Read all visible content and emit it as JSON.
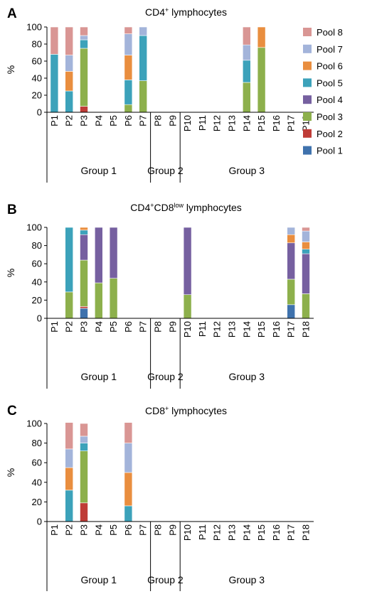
{
  "figure": {
    "legend": [
      {
        "label": "Pool 8",
        "color": "#d99694"
      },
      {
        "label": "Pool 7",
        "color": "#a3b4da"
      },
      {
        "label": "Pool 6",
        "color": "#e98e3f"
      },
      {
        "label": "Pool 5",
        "color": "#3ca2ba"
      },
      {
        "label": "Pool 4",
        "color": "#7660a0"
      },
      {
        "label": "Pool 3",
        "color": "#8db04c"
      },
      {
        "label": "Pool 2",
        "color": "#bf3c37"
      },
      {
        "label": "Pool 1",
        "color": "#3f72ad"
      }
    ]
  },
  "chart_data": [
    {
      "type": "bar",
      "stacked": true,
      "panel": "A",
      "title": {
        "parts": [
          {
            "text": "CD4",
            "sup": false
          },
          {
            "text": "+",
            "sup": true
          },
          {
            "text": " lymphocytes",
            "sup": false
          }
        ]
      },
      "ylabel": "%",
      "ylim": [
        0,
        100
      ],
      "yticks": [
        "0",
        "20",
        "40",
        "60",
        "80",
        "100"
      ],
      "categories": [
        "P1",
        "P2",
        "P3",
        "P4",
        "P5",
        "P6",
        "P7",
        "P8",
        "P9",
        "P10",
        "P11",
        "P12",
        "P13",
        "P14",
        "P15",
        "P16",
        "P17",
        "P18"
      ],
      "groups": [
        {
          "label": "Group 1",
          "span": [
            0,
            6
          ]
        },
        {
          "label": "Group 2",
          "span": [
            7,
            8
          ]
        },
        {
          "label": "Group 3",
          "span": [
            9,
            17
          ]
        }
      ],
      "series": [
        {
          "name": "Pool 1",
          "color": "#3f72ad",
          "values": [
            0,
            0,
            0,
            0,
            0,
            0,
            0,
            0,
            0,
            0,
            0,
            0,
            0,
            0,
            0,
            0,
            0,
            0
          ]
        },
        {
          "name": "Pool 2",
          "color": "#bf3c37",
          "values": [
            0,
            0,
            7,
            0,
            0,
            0,
            0,
            0,
            0,
            0,
            0,
            0,
            0,
            0,
            0,
            0,
            0,
            0
          ]
        },
        {
          "name": "Pool 3",
          "color": "#8db04c",
          "values": [
            0,
            0,
            68,
            0,
            0,
            9,
            37,
            0,
            0,
            0,
            0,
            0,
            0,
            35,
            76,
            0,
            0,
            0
          ]
        },
        {
          "name": "Pool 4",
          "color": "#7660a0",
          "values": [
            0,
            0,
            0,
            0,
            0,
            0,
            0,
            0,
            0,
            0,
            0,
            0,
            0,
            0,
            0,
            0,
            0,
            0
          ]
        },
        {
          "name": "Pool 5",
          "color": "#3ca2ba",
          "values": [
            68,
            25,
            10,
            0,
            0,
            29,
            53,
            0,
            0,
            0,
            0,
            0,
            0,
            26,
            0,
            0,
            0,
            0
          ]
        },
        {
          "name": "Pool 6",
          "color": "#e98e3f",
          "values": [
            0,
            23,
            0,
            0,
            0,
            29,
            0,
            0,
            0,
            0,
            0,
            0,
            0,
            0,
            24,
            0,
            0,
            0
          ]
        },
        {
          "name": "Pool 7",
          "color": "#a3b4da",
          "values": [
            0,
            19,
            5,
            0,
            0,
            25,
            10,
            0,
            0,
            0,
            0,
            0,
            0,
            18,
            0,
            0,
            0,
            0
          ]
        },
        {
          "name": "Pool 8",
          "color": "#d99694",
          "values": [
            32,
            33,
            10,
            0,
            0,
            8,
            0,
            0,
            0,
            0,
            0,
            0,
            0,
            21,
            0,
            0,
            0,
            0
          ]
        }
      ]
    },
    {
      "type": "bar",
      "stacked": true,
      "panel": "B",
      "title": {
        "parts": [
          {
            "text": "CD4",
            "sup": false
          },
          {
            "text": "+",
            "sup": true
          },
          {
            "text": "CD8",
            "sup": false
          },
          {
            "text": "low",
            "sup": true
          },
          {
            "text": " lymphocytes",
            "sup": false
          }
        ]
      },
      "ylabel": "%",
      "ylim": [
        0,
        100
      ],
      "yticks": [
        "0",
        "20",
        "40",
        "60",
        "80",
        "100"
      ],
      "categories": [
        "P1",
        "P2",
        "P3",
        "P4",
        "P5",
        "P6",
        "P7",
        "P8",
        "P9",
        "P10",
        "P11",
        "P12",
        "P13",
        "P14",
        "P15",
        "P16",
        "P17",
        "P18"
      ],
      "groups": [
        {
          "label": "Group 1",
          "span": [
            0,
            6
          ]
        },
        {
          "label": "Group 2",
          "span": [
            7,
            8
          ]
        },
        {
          "label": "Group 3",
          "span": [
            9,
            17
          ]
        }
      ],
      "series": [
        {
          "name": "Pool 1",
          "color": "#3f72ad",
          "values": [
            0,
            0,
            11,
            0,
            0,
            0,
            0,
            0,
            0,
            0,
            0,
            0,
            0,
            0,
            0,
            0,
            15,
            0
          ]
        },
        {
          "name": "Pool 2",
          "color": "#bf3c37",
          "values": [
            0,
            0,
            2,
            0,
            0,
            0,
            0,
            0,
            0,
            0,
            0,
            0,
            0,
            0,
            0,
            0,
            0,
            0
          ]
        },
        {
          "name": "Pool 3",
          "color": "#8db04c",
          "values": [
            0,
            29,
            51,
            39,
            44,
            0,
            0,
            0,
            0,
            26,
            0,
            0,
            0,
            0,
            0,
            0,
            28,
            27
          ]
        },
        {
          "name": "Pool 4",
          "color": "#7660a0",
          "values": [
            0,
            0,
            28,
            61,
            56,
            0,
            0,
            0,
            0,
            74,
            0,
            0,
            0,
            0,
            0,
            0,
            40,
            44
          ]
        },
        {
          "name": "Pool 5",
          "color": "#3ca2ba",
          "values": [
            0,
            71,
            5,
            0,
            0,
            0,
            0,
            0,
            0,
            0,
            0,
            0,
            0,
            0,
            0,
            0,
            0,
            5
          ]
        },
        {
          "name": "Pool 6",
          "color": "#e98e3f",
          "values": [
            0,
            0,
            3,
            0,
            0,
            0,
            0,
            0,
            0,
            0,
            0,
            0,
            0,
            0,
            0,
            0,
            9,
            8
          ]
        },
        {
          "name": "Pool 7",
          "color": "#a3b4da",
          "values": [
            0,
            0,
            0,
            0,
            0,
            0,
            0,
            0,
            0,
            0,
            0,
            0,
            0,
            0,
            0,
            0,
            8,
            12
          ]
        },
        {
          "name": "Pool 8",
          "color": "#d99694",
          "values": [
            0,
            0,
            0,
            0,
            0,
            0,
            0,
            0,
            0,
            0,
            0,
            0,
            0,
            0,
            0,
            0,
            0,
            4
          ]
        }
      ]
    },
    {
      "type": "bar",
      "stacked": true,
      "panel": "C",
      "title": {
        "parts": [
          {
            "text": "CD8",
            "sup": false
          },
          {
            "text": "+",
            "sup": true
          },
          {
            "text": " lymphocytes",
            "sup": false
          }
        ]
      },
      "ylabel": "%",
      "ylim": [
        0,
        100
      ],
      "yticks": [
        "0",
        "20",
        "40",
        "60",
        "80",
        "100"
      ],
      "categories": [
        "P1",
        "P2",
        "P3",
        "P4",
        "P5",
        "P6",
        "P7",
        "P8",
        "P9",
        "P10",
        "P11",
        "P12",
        "P13",
        "P14",
        "P15",
        "P16",
        "P17",
        "P18"
      ],
      "groups": [
        {
          "label": "Group 1",
          "span": [
            0,
            6
          ]
        },
        {
          "label": "Group 2",
          "span": [
            7,
            8
          ]
        },
        {
          "label": "Group 3",
          "span": [
            9,
            17
          ]
        }
      ],
      "series": [
        {
          "name": "Pool 1",
          "color": "#3f72ad",
          "values": [
            0,
            0,
            0,
            0,
            0,
            0,
            0,
            0,
            0,
            0,
            0,
            0,
            0,
            0,
            0,
            0,
            0,
            0
          ]
        },
        {
          "name": "Pool 2",
          "color": "#bf3c37",
          "values": [
            0,
            0,
            19,
            0,
            0,
            0,
            0,
            0,
            0,
            0,
            0,
            0,
            0,
            0,
            0,
            0,
            0,
            0
          ]
        },
        {
          "name": "Pool 3",
          "color": "#8db04c",
          "values": [
            0,
            0,
            53,
            0,
            0,
            0,
            0,
            0,
            0,
            0,
            0,
            0,
            0,
            0,
            0,
            0,
            0,
            0
          ]
        },
        {
          "name": "Pool 4",
          "color": "#7660a0",
          "values": [
            0,
            0,
            0,
            0,
            0,
            0,
            0,
            0,
            0,
            0,
            0,
            0,
            0,
            0,
            0,
            0,
            0,
            0
          ]
        },
        {
          "name": "Pool 5",
          "color": "#3ca2ba",
          "values": [
            0,
            32,
            8,
            0,
            0,
            16,
            0,
            0,
            0,
            0,
            0,
            0,
            0,
            0,
            0,
            0,
            0,
            0
          ]
        },
        {
          "name": "Pool 6",
          "color": "#e98e3f",
          "values": [
            0,
            23,
            0,
            0,
            0,
            34,
            0,
            0,
            0,
            0,
            0,
            0,
            0,
            0,
            0,
            0,
            0,
            0
          ]
        },
        {
          "name": "Pool 7",
          "color": "#a3b4da",
          "values": [
            0,
            19,
            7,
            0,
            0,
            30,
            0,
            0,
            0,
            0,
            0,
            0,
            0,
            0,
            0,
            0,
            0,
            0
          ]
        },
        {
          "name": "Pool 8",
          "color": "#d99694",
          "values": [
            0,
            27,
            13,
            0,
            0,
            21,
            0,
            0,
            0,
            0,
            0,
            0,
            0,
            0,
            0,
            0,
            0,
            0
          ]
        }
      ]
    }
  ]
}
